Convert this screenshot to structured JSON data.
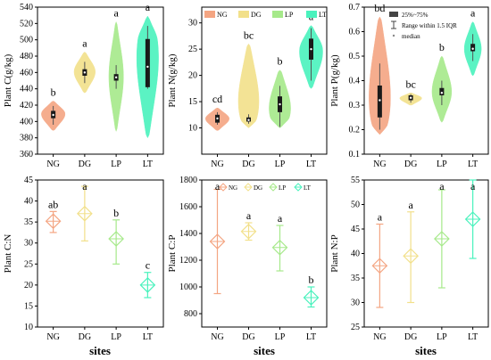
{
  "colors": {
    "NG": "#f4a582",
    "DG": "#f2e08a",
    "LP": "#a6e98a",
    "LT": "#4af2bd",
    "box": "#1a1a1a",
    "whisker": "#555555"
  },
  "xlabel": "sites",
  "legend_violin": [
    "NG",
    "DG",
    "LP",
    "LT"
  ],
  "legend_box": {
    "box_label": "25%~75%",
    "range_label": "Range within 1.5 IQR",
    "median_label": "median"
  },
  "chart_data": [
    {
      "type": "violin",
      "ylabel": "Plant C(g/kg)",
      "ylim": [
        360,
        540
      ],
      "yticks": [
        360,
        380,
        400,
        420,
        440,
        460,
        480,
        500,
        520,
        540
      ],
      "categories": [
        "NG",
        "DG",
        "LP",
        "LT"
      ],
      "groups": [
        {
          "name": "NG",
          "min": 389,
          "max": 425,
          "q1": 404,
          "median": 408,
          "q3": 413,
          "whisker_low": 396,
          "whisker_high": 419,
          "peak": 410,
          "width": 0.9,
          "letter": "b"
        },
        {
          "name": "DG",
          "min": 435,
          "max": 485,
          "q1": 456,
          "median": 460,
          "q3": 464,
          "whisker_low": 447,
          "whisker_high": 473,
          "peak": 461,
          "width": 0.8,
          "letter": "a"
        },
        {
          "name": "LP",
          "min": 388,
          "max": 522,
          "q1": 450,
          "median": 454,
          "q3": 458,
          "whisker_low": 440,
          "whisker_high": 469,
          "peak": 455,
          "width": 0.55,
          "letter": "a"
        },
        {
          "name": "LT",
          "min": 380,
          "max": 529,
          "q1": 442,
          "median": 467,
          "q3": 501,
          "whisker_low": 440,
          "whisker_high": 517,
          "peak": 500,
          "width": 0.9,
          "letter": "a"
        }
      ]
    },
    {
      "type": "violin",
      "ylabel": "Plant N(g/kg)",
      "ylim": [
        5,
        33
      ],
      "yticks": [
        10,
        15,
        20,
        25,
        30
      ],
      "categories": [
        "NG",
        "DG",
        "LP",
        "LT"
      ],
      "groups": [
        {
          "name": "NG",
          "min": 9.5,
          "max": 13.8,
          "q1": 11,
          "median": 11.8,
          "q3": 12.5,
          "whisker_low": 10.6,
          "whisker_high": 13,
          "peak": 11.8,
          "width": 0.9,
          "letter": "cd"
        },
        {
          "name": "DG",
          "min": 10,
          "max": 26,
          "q1": 11.2,
          "median": 11.5,
          "q3": 12,
          "whisker_low": 10.8,
          "whisker_high": 12.6,
          "peak": 11.5,
          "width": 0.9,
          "letter": "bc"
        },
        {
          "name": "LP",
          "min": 10,
          "max": 21,
          "q1": 13,
          "median": 14.5,
          "q3": 16,
          "whisker_low": 10.2,
          "whisker_high": 18,
          "peak": 12,
          "width": 0.9,
          "letter": "b"
        },
        {
          "name": "LT",
          "min": 17.5,
          "max": 29.5,
          "q1": 23,
          "median": 25,
          "q3": 27,
          "whisker_low": 19,
          "whisker_high": 29,
          "peak": 25,
          "width": 0.9,
          "letter": "a"
        }
      ]
    },
    {
      "type": "violin",
      "ylabel": "Plant P(g/kg)",
      "ylim": [
        0.1,
        0.7
      ],
      "yticks": [
        0.1,
        0.2,
        0.3,
        0.4,
        0.5,
        0.6,
        0.7
      ],
      "categories": [
        "NG",
        "DG",
        "LP",
        "LT"
      ],
      "groups": [
        {
          "name": "NG",
          "min": 0.18,
          "max": 0.66,
          "q1": 0.25,
          "median": 0.32,
          "q3": 0.38,
          "whisker_low": 0.2,
          "whisker_high": 0.47,
          "peak": 0.22,
          "width": 0.95,
          "letter": "bd"
        },
        {
          "name": "DG",
          "min": 0.3,
          "max": 0.35,
          "q1": 0.32,
          "median": 0.33,
          "q3": 0.34,
          "whisker_low": 0.31,
          "whisker_high": 0.345,
          "peak": 0.33,
          "width": 0.85,
          "letter": "bc"
        },
        {
          "name": "LP",
          "min": 0.23,
          "max": 0.5,
          "q1": 0.34,
          "median": 0.35,
          "q3": 0.37,
          "whisker_low": 0.3,
          "whisker_high": 0.4,
          "peak": 0.35,
          "width": 0.75,
          "letter": "b"
        },
        {
          "name": "LT",
          "min": 0.42,
          "max": 0.64,
          "q1": 0.52,
          "median": 0.53,
          "q3": 0.55,
          "whisker_low": 0.48,
          "whisker_high": 0.59,
          "peak": 0.53,
          "width": 0.65,
          "letter": "a"
        }
      ]
    },
    {
      "type": "errorbar",
      "ylabel": "Plant C:N",
      "ylim": [
        10,
        45
      ],
      "yticks": [
        10,
        15,
        20,
        25,
        30,
        35,
        40,
        45
      ],
      "categories": [
        "NG",
        "DG",
        "LP",
        "LT"
      ],
      "points": [
        {
          "name": "NG",
          "mean": 35.2,
          "low": 32.5,
          "high": 37.5,
          "letter": "ab"
        },
        {
          "name": "DG",
          "mean": 37,
          "low": 30.5,
          "high": 43.5,
          "letter": "a"
        },
        {
          "name": "LP",
          "mean": 31,
          "low": 25,
          "high": 35.5,
          "letter": "b"
        },
        {
          "name": "LT",
          "mean": 20,
          "low": 17,
          "high": 23,
          "letter": "c"
        }
      ]
    },
    {
      "type": "errorbar",
      "ylabel": "Plant C:P",
      "ylim": [
        700,
        1800
      ],
      "yticks": [
        800,
        1000,
        1200,
        1400,
        1600,
        1800
      ],
      "categories": [
        "NG",
        "DG",
        "LP",
        "LT"
      ],
      "points": [
        {
          "name": "NG",
          "mean": 1340,
          "low": 950,
          "high": 1730,
          "letter": "a"
        },
        {
          "name": "DG",
          "mean": 1415,
          "low": 1350,
          "high": 1480,
          "letter": "a"
        },
        {
          "name": "LP",
          "mean": 1295,
          "low": 1120,
          "high": 1460,
          "letter": "a"
        },
        {
          "name": "LT",
          "mean": 920,
          "low": 850,
          "high": 1000,
          "letter": "b"
        }
      ],
      "legend": [
        "NG",
        "DG",
        "LP",
        "LT"
      ]
    },
    {
      "type": "errorbar",
      "ylabel": "Plant N:P",
      "ylim": [
        25,
        55
      ],
      "yticks": [
        25,
        30,
        35,
        40,
        45,
        50,
        55
      ],
      "categories": [
        "NG",
        "DG",
        "LP",
        "LT"
      ],
      "points": [
        {
          "name": "NG",
          "mean": 37.5,
          "low": 29,
          "high": 46,
          "letter": "a"
        },
        {
          "name": "DG",
          "mean": 39.5,
          "low": 30,
          "high": 48.5,
          "letter": "a"
        },
        {
          "name": "LP",
          "mean": 43,
          "low": 33,
          "high": 53,
          "letter": "a"
        },
        {
          "name": "LT",
          "mean": 47,
          "low": 39,
          "high": 55,
          "letter": "a"
        }
      ]
    }
  ]
}
